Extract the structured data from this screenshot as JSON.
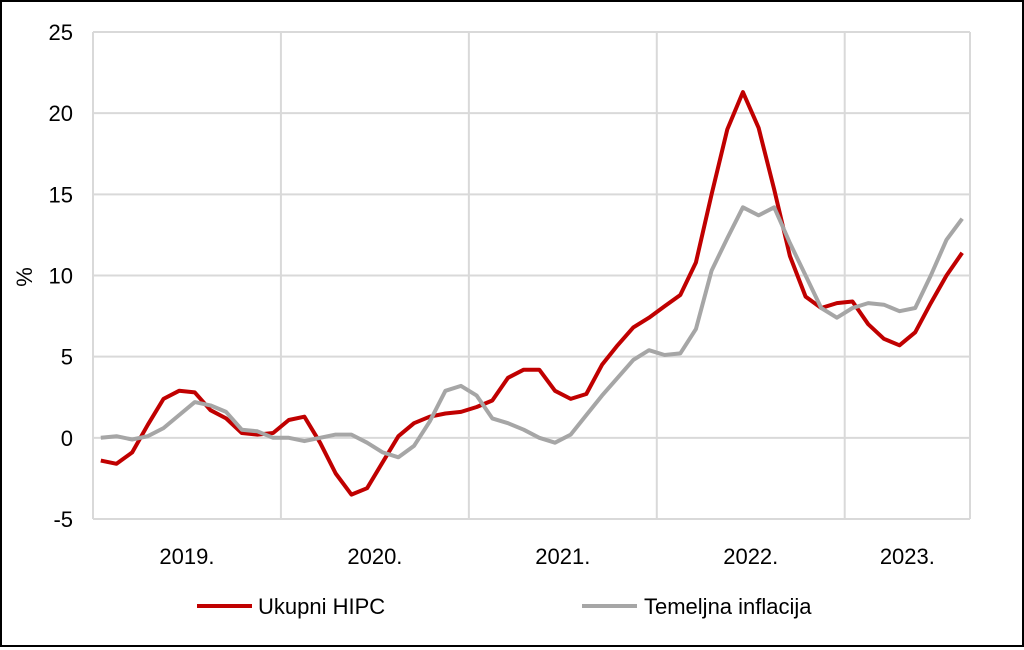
{
  "chart_data": {
    "type": "line",
    "title": "",
    "xlabel": "",
    "ylabel": "%",
    "ylim": [
      -5,
      25
    ],
    "yticks": [
      -5,
      0,
      5,
      10,
      15,
      20,
      25
    ],
    "grid": true,
    "legend": "bottom",
    "x_start": "2019-01",
    "x_end": "2023-08",
    "frequency": "monthly",
    "year_labels": [
      "2019.",
      "2020.",
      "2021.",
      "2022.",
      "2023."
    ],
    "series": [
      {
        "name": "Ukupni HIPC",
        "color": "#c00000",
        "values": [
          -1.4,
          -1.6,
          -0.9,
          0.8,
          2.4,
          2.9,
          2.8,
          1.7,
          1.2,
          0.3,
          0.2,
          0.3,
          1.1,
          1.3,
          -0.3,
          -2.2,
          -3.5,
          -3.1,
          -1.5,
          0.1,
          0.9,
          1.3,
          1.5,
          1.6,
          1.9,
          2.3,
          3.7,
          4.2,
          4.2,
          2.9,
          2.4,
          2.7,
          4.5,
          5.7,
          6.8,
          7.4,
          8.1,
          8.8,
          10.8,
          15.0,
          19.0,
          21.3,
          19.1,
          15.3,
          11.2,
          8.7,
          8.0,
          8.3,
          8.4,
          7.0,
          6.1,
          5.7,
          6.5,
          8.3,
          10.0,
          11.4
        ]
      },
      {
        "name": "Temeljna inflacija",
        "color": "#a6a6a6",
        "values": [
          0.0,
          0.1,
          -0.1,
          0.1,
          0.6,
          1.4,
          2.2,
          2.0,
          1.6,
          0.5,
          0.4,
          0.0,
          0.0,
          -0.2,
          0.0,
          0.2,
          0.2,
          -0.3,
          -0.9,
          -1.2,
          -0.5,
          1.0,
          2.9,
          3.2,
          2.6,
          1.2,
          0.9,
          0.5,
          0.0,
          -0.3,
          0.2,
          1.4,
          2.6,
          3.7,
          4.8,
          5.4,
          5.1,
          5.2,
          6.7,
          10.3,
          12.3,
          14.2,
          13.7,
          14.2,
          12.0,
          10.0,
          8.0,
          7.4,
          8.0,
          8.3,
          8.2,
          7.8,
          8.0,
          10.0,
          12.2,
          13.5
        ]
      }
    ]
  }
}
